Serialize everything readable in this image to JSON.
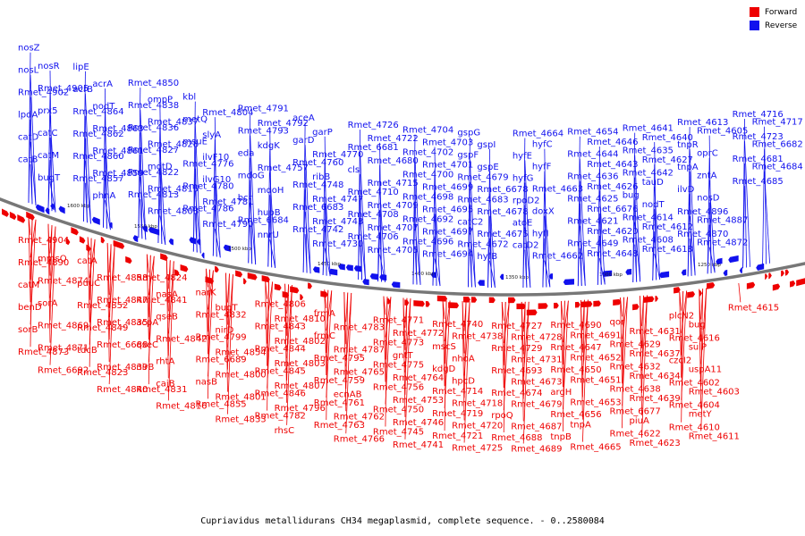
{
  "colors": {
    "forward": "#ee0000",
    "reverse": "#1111ee",
    "backbone": "#777777"
  },
  "legend": [
    {
      "label": "Forward",
      "color": "#ee0000"
    },
    {
      "label": "Reverse",
      "color": "#1111ee"
    }
  ],
  "caption": "Cupriavidus metallidurans CH34 megaplasmid, complete sequence. - 0..2580084",
  "tick_labels": [
    "1600 kbp",
    "1550 kbp",
    "1500 kbp",
    "1450 kbp",
    "1400 kbp",
    "1350 kbp",
    "1300 kbp",
    "1250 kbp"
  ],
  "reverse_labels": [
    "nosZ",
    "nosR",
    "nosL",
    "Rmet_4905",
    "Rmet_4902",
    "prx5",
    "lpdA",
    "catC",
    "catD",
    "catM",
    "catB",
    "bugT",
    "lipE",
    "acrA",
    "acrB",
    "nodT",
    "Rmet_4864",
    "Rmet_4863",
    "Rmet_4862",
    "Rmet_4861",
    "Rmet_4860",
    "Rmet_4859",
    "Rmet_4857",
    "phnA",
    "Rmet_4850",
    "ompP",
    "Rmet_4838",
    "Rmet_4837",
    "Rmet_4836",
    "Rmet_4828",
    "Rmet_4827",
    "mdtD",
    "Rmet_4822",
    "Rmet_4815",
    "Rmet_4813",
    "Rmet_4808",
    "kbl",
    "Rmet_4804",
    "metQ",
    "slyA",
    "msuE",
    "ilvF10",
    "Rmet_4776",
    "ilvG10",
    "Rmet_4780",
    "Rmet_4781",
    "Rmet_4786",
    "Rmet_4790",
    "Rmet_4791",
    "Rmet_4792",
    "Rmet_4793",
    "kdgK",
    "eda",
    "Rmet_4757",
    "mdoG",
    "mdoH",
    "bcr",
    "hupB",
    "Rmet_6684",
    "nnrU",
    "aceA",
    "garP",
    "garD",
    "Rmet_4770",
    "Rmet_4760",
    "ribB",
    "Rmet_4748",
    "Rmet_4747",
    "Rmet_6683",
    "Rmet_4743",
    "Rmet_4742",
    "Rmet_4730",
    "Rmet_4726",
    "Rmet_4722",
    "Rmet_6681",
    "Rmet_4680",
    "cls",
    "Rmet_4715",
    "Rmet_4710",
    "Rmet_4709",
    "Rmet_4708",
    "Rmet_4707",
    "Rmet_4706",
    "Rmet_4705",
    "Rmet_4704",
    "Rmet_4703",
    "Rmet_4702",
    "Rmet_4701",
    "Rmet_4700",
    "Rmet_4699",
    "Rmet_4698",
    "Rmet_4695",
    "Rmet_4692",
    "Rmet_4697",
    "Rmet_4696",
    "Rmet_4694",
    "gspG",
    "gspI",
    "gspF",
    "gspE",
    "Rmet_4679",
    "Rmet_6678",
    "Rmet_4683",
    "Rmet_4678",
    "catC2",
    "Rmet_4675",
    "Rmet_4672",
    "hyfB",
    "Rmet_4664",
    "hyfC",
    "hyfE",
    "hyfF",
    "hyfG",
    "Rmet_4663",
    "rpoD2",
    "doxX",
    "atoE",
    "hyfI",
    "catD2",
    "Rmet_4662",
    "Rmet_4654",
    "Rmet_4646",
    "Rmet_4644",
    "Rmet_4643",
    "Rmet_4636",
    "Rmet_4626",
    "Rmet_4625",
    "Rmet_6676",
    "Rmet_4621",
    "Rmet_4620",
    "Rmet_4649",
    "Rmet_4648",
    "Rmet_4641",
    "Rmet_4640",
    "Rmet_4635",
    "Rmet_4627",
    "Rmet_4642",
    "tauD",
    "bug",
    "nodT",
    "Rmet_4614",
    "Rmet_4612",
    "Rmet_4608",
    "Rmet_4618",
    "Rmet_4613",
    "Rmet_4605",
    "tnpR",
    "oprC",
    "tnpA",
    "zntA",
    "ilvD",
    "nosD",
    "Rmet_4896",
    "Rmet_4887",
    "Rmet_4870",
    "Rmet_4872",
    "Rmet_4716",
    "Rmet_4717",
    "Rmet_4723",
    "Rmet_6682",
    "Rmet_4681",
    "Rmet_4684",
    "Rmet_4685"
  ],
  "forward_labels": [
    "Rmet_4904",
    "mmsQ",
    "Rmet_4890",
    "Rmet_4874",
    "catM",
    "sorA",
    "benD",
    "Rmet_4869",
    "sorB",
    "Rmet_4871",
    "Rmet_4873",
    "Rmet_6692",
    "catA",
    "Rmet_4858",
    "puuC",
    "Rmet_4847",
    "Rmet_4852",
    "Rmet_4835",
    "Rmet_4849",
    "Rmet_6688",
    "tdcB",
    "Rmet_4839",
    "Rmet_4823",
    "Rmet_4840",
    "Rmet_4824",
    "nasA",
    "Rmet_4841",
    "qseB",
    "acpA",
    "Rmet_4842",
    "qseC",
    "rhtA",
    "nirB",
    "caiB",
    "Rmet_4831",
    "Rmet_4816",
    "narK",
    "bugT",
    "Rmet_4832",
    "nirD",
    "Rmet_4799",
    "Rmet_4854",
    "Rmet_6689",
    "Rmet_4800",
    "nasB",
    "Rmet_4801",
    "Rmet_4855",
    "Rmet_4833",
    "Rmet_4806",
    "Rmet_4810",
    "Rmet_4843",
    "Rmet_4802",
    "Rmet_4844",
    "Rmet_4803",
    "Rmet_4845",
    "Rmet_4807",
    "Rmet_4846",
    "Rmet_4796",
    "Rmet_4782",
    "rhsC",
    "frmA",
    "Rmet_4783",
    "frmC",
    "Rmet_4787",
    "Rmet_4795",
    "Rmet_4765",
    "Rmet_4759",
    "ecnAB",
    "Rmet_4761",
    "Rmet_4762",
    "Rmet_4763",
    "Rmet_4766",
    "Rmet_4771",
    "Rmet_4772",
    "Rmet_4773",
    "gntT",
    "Rmet_4775",
    "Rmet_4764",
    "Rmet_4756",
    "Rmet_4753",
    "Rmet_4750",
    "Rmet_4746",
    "Rmet_4745",
    "Rmet_4741",
    "Rmet_4740",
    "Rmet_4738",
    "mscS",
    "nhoA",
    "kdgD",
    "hpcD",
    "Rmet_4714",
    "Rmet_4718",
    "Rmet_4719",
    "Rmet_4720",
    "Rmet_4721",
    "Rmet_4725",
    "Rmet_4727",
    "Rmet_4728",
    "Rmet_4729",
    "Rmet_4731",
    "Rmet_4693",
    "Rmet_4673",
    "Rmet_4674",
    "Rmet_4679",
    "rpoQ",
    "Rmet_4687",
    "Rmet_4688",
    "Rmet_4689",
    "Rmet_4690",
    "Rmet_4691",
    "Rmet_4647",
    "Rmet_4652",
    "Rmet_4650",
    "Rmet_4651",
    "argH",
    "Rmet_4653",
    "Rmet_4656",
    "tnpA",
    "tnpB",
    "Rmet_4665",
    "qor",
    "Rmet_4631",
    "Rmet_4629",
    "Rmet_4637",
    "Rmet_4632",
    "Rmet_4634",
    "Rmet_4638",
    "Rmet_4639",
    "Rmet_6677",
    "piuA",
    "Rmet_4622",
    "Rmet_4623",
    "plcN2",
    "bug",
    "Rmet_4616",
    "sulP",
    "czcI2",
    "uspA11",
    "Rmet_4602",
    "Rmet_4603",
    "Rmet_4604",
    "metY",
    "Rmet_4610",
    "Rmet_4611",
    "Rmet_4615"
  ]
}
